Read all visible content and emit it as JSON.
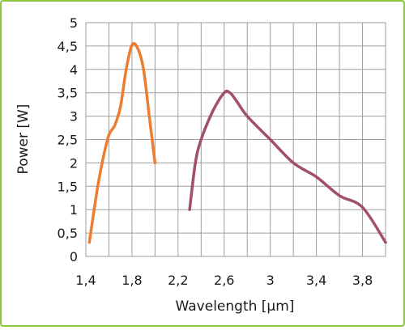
{
  "colors": {
    "frame_border": "#8dc63f",
    "grid": "#9e9e9e",
    "series_1": "#ed7d31",
    "series_2": "#a0506e"
  },
  "chart_data": {
    "type": "line",
    "xlabel": "Wavelength [µm]",
    "ylabel": "Power [W]",
    "xlim": [
      1.4,
      4.0
    ],
    "ylim": [
      0,
      5
    ],
    "grid": true,
    "x_ticks": [
      1.4,
      1.6,
      1.8,
      2.0,
      2.2,
      2.4,
      2.6,
      2.8,
      3.0,
      3.2,
      3.4,
      3.6,
      3.8,
      4.0
    ],
    "x_tick_labels": [
      "1,4",
      "",
      "1,8",
      "",
      "2,2",
      "",
      "2,6",
      "",
      "3",
      "",
      "3,4",
      "",
      "3,8",
      ""
    ],
    "y_ticks": [
      0,
      0.5,
      1,
      1.5,
      2,
      2.5,
      3,
      3.5,
      4,
      4.5,
      5
    ],
    "y_tick_labels": [
      "0",
      "0,5",
      "1",
      "1,5",
      "2",
      "2,5",
      "3",
      "3,5",
      "4",
      "4,5",
      "5"
    ],
    "series": [
      {
        "x": [
          1.43,
          1.5,
          1.55,
          1.6,
          1.65,
          1.7,
          1.75,
          1.8,
          1.85,
          1.9,
          1.95,
          2.0
        ],
        "y": [
          0.3,
          1.45,
          2.1,
          2.6,
          2.8,
          3.2,
          4.0,
          4.52,
          4.45,
          4.0,
          3.0,
          2.0
        ]
      },
      {
        "x": [
          2.3,
          2.35,
          2.4,
          2.5,
          2.6,
          2.65,
          2.7,
          2.8,
          3.0,
          3.2,
          3.4,
          3.6,
          3.8,
          4.0
        ],
        "y": [
          1.0,
          2.0,
          2.5,
          3.1,
          3.5,
          3.5,
          3.35,
          3.0,
          2.5,
          2.0,
          1.7,
          1.3,
          1.05,
          0.3
        ]
      }
    ]
  }
}
